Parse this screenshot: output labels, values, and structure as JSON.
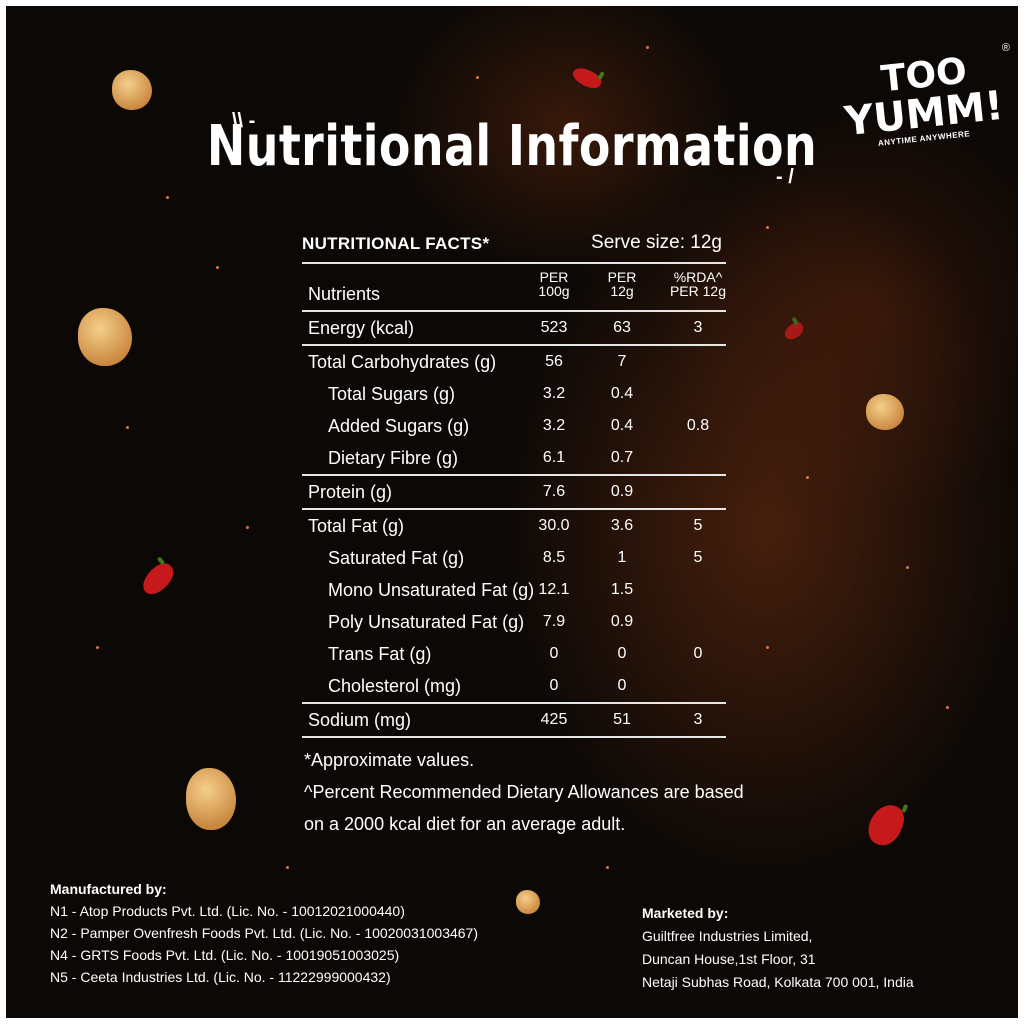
{
  "title": "Nutritional Information",
  "logo": {
    "line1": "TOO",
    "line2": "YUMM!",
    "tagline": "ANYTIME ANYWHERE",
    "reg_mark": "®"
  },
  "facts": {
    "header": "NUTRITIONAL FACTS*",
    "serve_size": "Serve size: 12g",
    "columns": {
      "nutrients": "Nutrients",
      "per100_top": "PER",
      "per100_bottom": "100g",
      "per12_top": "PER",
      "per12_bottom": "12g",
      "rda_top": "%RDA^",
      "rda_bottom": "PER 12g"
    },
    "rows": [
      {
        "label": "Energy (kcal)",
        "per100": "523",
        "per12": "63",
        "rda": "3"
      },
      {
        "label": "Total Carbohydrates (g)",
        "per100": "56",
        "per12": "7",
        "rda": ""
      },
      {
        "label": "Total Sugars (g)",
        "per100": "3.2",
        "per12": "0.4",
        "rda": ""
      },
      {
        "label": "Added Sugars (g)",
        "per100": "3.2",
        "per12": "0.4",
        "rda": "0.8"
      },
      {
        "label": "Dietary Fibre (g)",
        "per100": "6.1",
        "per12": "0.7",
        "rda": ""
      },
      {
        "label": "Protein (g)",
        "per100": "7.6",
        "per12": "0.9",
        "rda": ""
      },
      {
        "label": "Total Fat (g)",
        "per100": "30.0",
        "per12": "3.6",
        "rda": "5"
      },
      {
        "label": "Saturated Fat (g)",
        "per100": "8.5",
        "per12": "1",
        "rda": "5"
      },
      {
        "label": "Mono Unsaturated Fat (g)",
        "per100": "12.1",
        "per12": "1.5",
        "rda": ""
      },
      {
        "label": "Poly Unsaturated Fat (g)",
        "per100": "7.9",
        "per12": "0.9",
        "rda": ""
      },
      {
        "label": "Trans Fat (g)",
        "per100": "0",
        "per12": "0",
        "rda": "0"
      },
      {
        "label": "Cholesterol (mg)",
        "per100": "0",
        "per12": "0",
        "rda": ""
      },
      {
        "label": "Sodium (mg)",
        "per100": "425",
        "per12": "51",
        "rda": "3"
      }
    ]
  },
  "notes": {
    "approx": "*Approximate values.",
    "rda_line1": "^Percent Recommended Dietary Allowances are based",
    "rda_line2": "on a 2000 kcal diet for an average adult."
  },
  "manufactured": {
    "heading": "Manufactured by:",
    "lines": [
      "N1 - Atop Products Pvt. Ltd. (Lic. No. - 10012021000440)",
      "N2 - Pamper Ovenfresh Foods Pvt. Ltd. (Lic. No. - 10020031003467)",
      "N4 - GRTS Foods Pvt. Ltd. (Lic. No. - 10019051003025)",
      "N5 - Ceeta Industries Ltd. (Lic. No. - 11222999000432)"
    ]
  },
  "marketed": {
    "heading": "Marketed by:",
    "lines": [
      "Guiltfree Industries Limited,",
      "Duncan House,1st Floor, 31",
      "Netaji Subhas Road, Kolkata 700 001, India"
    ]
  }
}
